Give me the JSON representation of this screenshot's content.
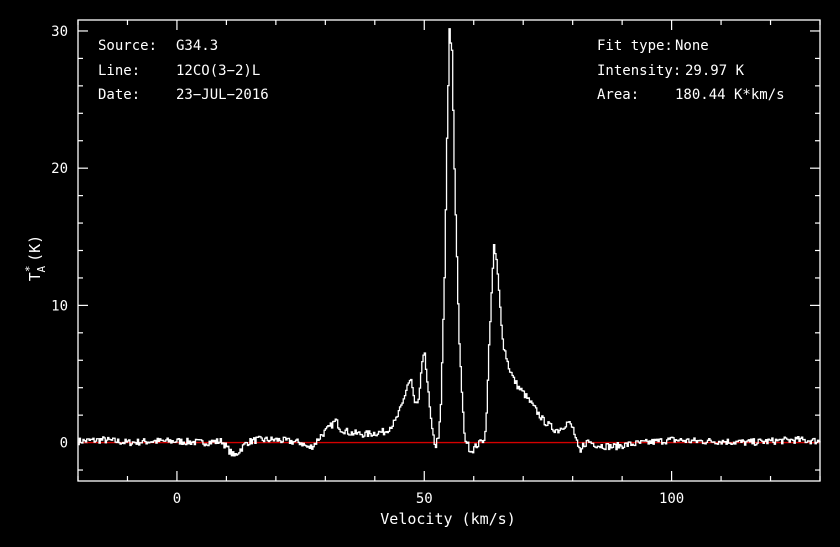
{
  "info_left": {
    "source_key": "Source:",
    "source_val": "G34.3",
    "line_key": "Line:",
    "line_val": "12CO(3−2)L",
    "date_key": "Date:",
    "date_val": "23−JUL−2016"
  },
  "info_right": {
    "fit_key": "Fit type:",
    "fit_val": "None",
    "int_key": "Intensity:",
    "int_val": "29.97 K",
    "area_key": "Area:",
    "area_val": "180.44 K*km/s"
  },
  "colors": {
    "background": "#000000",
    "spectrum": "#ffffff",
    "baseline": "#d40000"
  },
  "chart_data": {
    "type": "line",
    "xlabel": "Velocity (km/s)",
    "ylabel_main": "T",
    "ylabel_sup": "*",
    "ylabel_sub": "A",
    "ylabel_unit": "(K)",
    "xlim": [
      -20,
      130
    ],
    "ylim": [
      -2.8,
      30.8
    ],
    "xticks": [
      0,
      50,
      100
    ],
    "yticks": [
      0,
      10,
      20,
      30
    ],
    "xtick_labels": [
      "0",
      "50",
      "100"
    ],
    "ytick_labels": [
      "0",
      "10",
      "20",
      "30"
    ],
    "baseline_y": 0,
    "series": [
      {
        "x": [
          -20,
          -15,
          -10,
          -5,
          0,
          5,
          9,
          10.5,
          11.5,
          12.5,
          14,
          16,
          20,
          25,
          26.5,
          27.5,
          29,
          31,
          32,
          33,
          35,
          38,
          42,
          44,
          45.5,
          46.5,
          47.2,
          48,
          48.7,
          49.3,
          50,
          50.5,
          51,
          51.5,
          52.2,
          52.8,
          53.2,
          54,
          54.5,
          55,
          55.5,
          56,
          57,
          58,
          59,
          59.5,
          60,
          60.5,
          61,
          61.5,
          62,
          62.5,
          63,
          63.5,
          64,
          64.5,
          65,
          65.5,
          66,
          67,
          68,
          69,
          70,
          72,
          74,
          76,
          77,
          78,
          79,
          80,
          81,
          81.5,
          82,
          83,
          85,
          88,
          90,
          92,
          95,
          100,
          105,
          110,
          115,
          120,
          125,
          130
        ],
        "y": [
          0.1,
          0.2,
          0,
          0.1,
          0.1,
          0,
          0.1,
          -0.6,
          -1,
          -0.6,
          0,
          0.2,
          0.2,
          0,
          -0.4,
          -0.2,
          0.5,
          1.2,
          1.6,
          1,
          0.7,
          0.6,
          0.8,
          1.5,
          2.8,
          4.2,
          4.6,
          2.8,
          2.7,
          5.3,
          6.6,
          4.5,
          2.5,
          0.8,
          -0.3,
          0.6,
          2,
          12,
          22,
          29.97,
          28.5,
          20,
          7,
          0.5,
          -0.4,
          -0.6,
          -0.4,
          -0.2,
          -0.1,
          0.3,
          0.1,
          2,
          7,
          11,
          14.2,
          13.3,
          11,
          8.5,
          7,
          5.5,
          4.6,
          4,
          3.6,
          2.6,
          1.6,
          1,
          0.9,
          1.2,
          1.5,
          1,
          -0.4,
          -0.8,
          -0.2,
          0.1,
          -0.2,
          -0.3,
          -0.2,
          -0.1,
          0,
          0.2,
          0.1,
          0.1,
          0,
          0.1,
          0.2,
          0.1
        ]
      }
    ]
  }
}
